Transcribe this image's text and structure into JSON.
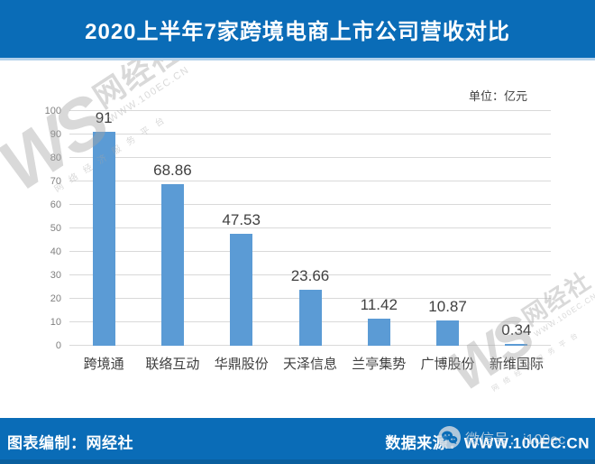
{
  "header": {
    "title": "2020上半年7家跨境电商上市公司营收对比"
  },
  "chart_data": {
    "type": "bar",
    "title": "2020上半年7家跨境电商上市公司营收对比",
    "unit_label": "单位：亿元",
    "categories": [
      "跨境通",
      "联络互动",
      "华鼎股份",
      "天泽信息",
      "兰亭集势",
      "广博股份",
      "新维国际"
    ],
    "values": [
      91,
      68.86,
      47.53,
      23.66,
      11.42,
      10.87,
      0.34
    ],
    "value_labels": [
      "91",
      "68.86",
      "47.53",
      "23.66",
      "11.42",
      "10.87",
      "0.34"
    ],
    "xlabel": "",
    "ylabel": "",
    "ylim": [
      0,
      100
    ],
    "yticks": [
      0,
      10,
      20,
      30,
      40,
      50,
      60,
      70,
      80,
      90,
      100
    ],
    "grid": true,
    "legend": "none",
    "bar_color": "#5b9bd5"
  },
  "watermarks": {
    "logo_ws": "WS",
    "logo_name": "网经社",
    "logo_url": "WWW.100EC.CN",
    "logo_tagline": "网络经济服务平台",
    "wechat": "微信号：i100ec"
  },
  "footer": {
    "left_text": "图表编制：网经社",
    "right_text": "数据来源：WWW.100EC.CN"
  },
  "colors": {
    "banner_blue": "#0a6cb7",
    "banner_border": "#b3d1ea",
    "bar_blue": "#5b9bd5",
    "gridline_gray": "#d9d9d9",
    "tick_gray": "#808080",
    "label_dark": "#404040"
  }
}
